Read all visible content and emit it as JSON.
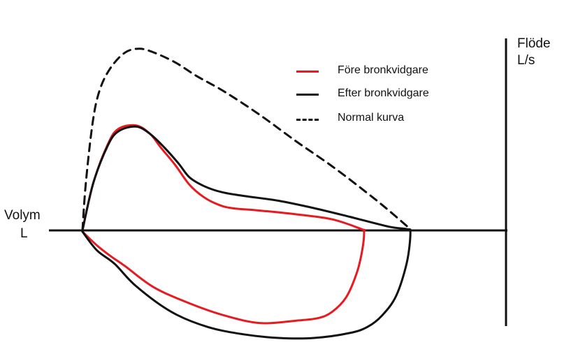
{
  "chart_data": {
    "type": "line",
    "title": "",
    "xlabel": [
      "Volym",
      "L"
    ],
    "ylabel": [
      "Flöde",
      "L/s"
    ],
    "grid": false,
    "legend_position": "top-center",
    "legend": [
      {
        "label": "Före bronkvidgare",
        "color": "#e8191f",
        "style": "solid"
      },
      {
        "label": "Efter bronkvidgare",
        "color": "#111111",
        "style": "solid"
      },
      {
        "label": "Normal kurva",
        "color": "#111111",
        "style": "dashed"
      }
    ],
    "series": [
      {
        "name": "Före bronkvidgare",
        "color": "#e8191f",
        "dash": false,
        "x": [
          0.0,
          0.3,
          0.7,
          1.0,
          1.5,
          1.9,
          2.2,
          2.6,
          3.0,
          3.4,
          3.8,
          4.2,
          5.0,
          6.0,
          7.0,
          7.83,
          7.9,
          7.85,
          7.7,
          7.4,
          7.0,
          6.6,
          6.0,
          5.0,
          4.0,
          3.0,
          2.0,
          1.2,
          0.8,
          0.4,
          0.0
        ],
        "y": [
          0.0,
          3.8,
          6.9,
          8.2,
          8.5,
          7.8,
          6.7,
          5.3,
          3.7,
          2.7,
          2.1,
          1.8,
          1.6,
          1.3,
          0.9,
          0.1,
          -0.1,
          -1.6,
          -3.4,
          -5.4,
          -6.6,
          -7.1,
          -7.3,
          -7.5,
          -6.9,
          -5.9,
          -4.6,
          -2.9,
          -2.1,
          -1.2,
          -0.1
        ]
      },
      {
        "name": "Efter bronkvidgare",
        "color": "#111111",
        "dash": false,
        "x": [
          0.0,
          0.3,
          0.7,
          1.0,
          1.5,
          1.9,
          2.3,
          2.7,
          3.0,
          3.4,
          3.9,
          4.5,
          5.5,
          6.5,
          7.5,
          8.6,
          9.1,
          9.2,
          9.1,
          8.8,
          8.4,
          8.0,
          7.5,
          6.5,
          5.5,
          4.5,
          3.5,
          2.5,
          1.5,
          0.9,
          0.4,
          0.0
        ],
        "y": [
          0.0,
          3.8,
          6.8,
          8.0,
          8.4,
          7.8,
          6.7,
          5.4,
          4.3,
          3.6,
          3.1,
          2.8,
          2.4,
          1.8,
          1.1,
          0.3,
          0.1,
          -0.2,
          -2.6,
          -5.3,
          -6.9,
          -7.8,
          -8.3,
          -8.7,
          -8.7,
          -8.4,
          -7.8,
          -6.6,
          -4.5,
          -2.7,
          -1.6,
          -0.1
        ]
      },
      {
        "name": "Normal kurva",
        "color": "#111111",
        "dash": true,
        "x": [
          0.0,
          0.1,
          0.3,
          0.5,
          0.8,
          1.2,
          1.6,
          2.0,
          2.6,
          3.2,
          4.0,
          5.0,
          6.0,
          7.0,
          8.0,
          8.6,
          9.2
        ],
        "y": [
          0.0,
          4.0,
          9.0,
          11.5,
          13.2,
          14.4,
          14.7,
          14.4,
          13.6,
          12.5,
          11.2,
          9.3,
          7.2,
          5.2,
          3.0,
          1.6,
          0.1
        ]
      }
    ],
    "xlim": [
      0,
      9.6
    ],
    "ylim": [
      -9.0,
      17.0
    ]
  }
}
